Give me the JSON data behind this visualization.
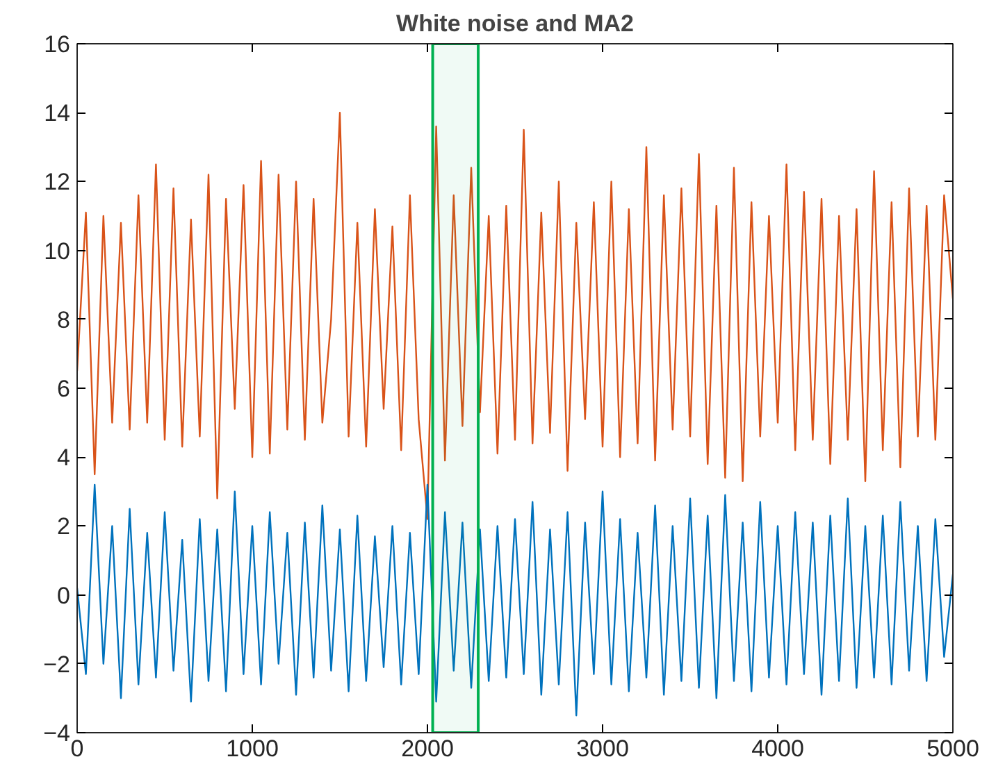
{
  "chart_data": {
    "type": "line",
    "title": "White noise and MA2",
    "x": [
      0,
      50,
      100,
      150,
      200,
      250,
      300,
      350,
      400,
      450,
      500,
      550,
      600,
      650,
      700,
      750,
      800,
      850,
      900,
      950,
      1000,
      1050,
      1100,
      1150,
      1200,
      1250,
      1300,
      1350,
      1400,
      1450,
      1500,
      1550,
      1600,
      1650,
      1700,
      1750,
      1800,
      1850,
      1900,
      1950,
      2000,
      2050,
      2100,
      2150,
      2200,
      2250,
      2300,
      2350,
      2400,
      2450,
      2500,
      2550,
      2600,
      2650,
      2700,
      2750,
      2800,
      2850,
      2900,
      2950,
      3000,
      3050,
      3100,
      3150,
      3200,
      3250,
      3300,
      3350,
      3400,
      3450,
      3500,
      3550,
      3600,
      3650,
      3700,
      3750,
      3800,
      3850,
      3900,
      3950,
      4000,
      4050,
      4100,
      4150,
      4200,
      4250,
      4300,
      4350,
      4400,
      4450,
      4500,
      4550,
      4600,
      4650,
      4700,
      4750,
      4800,
      4850,
      4900,
      4950,
      5000
    ],
    "series": [
      {
        "color": "#d95319",
        "values": [
          6.5,
          11.1,
          3.5,
          11.0,
          5.0,
          10.8,
          4.8,
          11.6,
          5.0,
          12.5,
          4.5,
          11.8,
          4.3,
          10.9,
          4.6,
          12.2,
          2.8,
          11.5,
          5.4,
          11.9,
          4.0,
          12.6,
          4.1,
          12.2,
          4.8,
          12.0,
          4.5,
          11.5,
          5.0,
          8.0,
          14.0,
          4.6,
          10.8,
          4.3,
          11.2,
          5.4,
          10.7,
          4.2,
          11.6,
          5.1,
          2.2,
          13.6,
          3.9,
          11.6,
          4.9,
          12.4,
          5.3,
          11.0,
          4.1,
          11.3,
          4.5,
          13.5,
          4.4,
          11.1,
          4.7,
          12.0,
          3.6,
          10.8,
          5.1,
          11.4,
          4.3,
          12.0,
          4.0,
          11.2,
          4.4,
          13.0,
          3.9,
          11.6,
          4.8,
          11.8,
          4.6,
          12.8,
          3.8,
          11.3,
          3.4,
          12.4,
          3.3,
          11.4,
          4.6,
          11.0,
          5.0,
          12.5,
          4.2,
          11.7,
          4.5,
          11.5,
          3.8,
          11.0,
          4.5,
          11.2,
          3.3,
          12.3,
          4.2,
          11.4,
          3.7,
          11.8,
          4.6,
          11.3,
          4.5,
          11.6,
          8.6
        ]
      },
      {
        "color": "#0072bd",
        "values": [
          0.2,
          -2.3,
          3.2,
          -2.0,
          2.0,
          -3.0,
          2.5,
          -2.6,
          1.8,
          -2.4,
          2.4,
          -2.2,
          1.6,
          -3.1,
          2.2,
          -2.5,
          1.9,
          -2.8,
          3.0,
          -2.3,
          2.0,
          -2.6,
          2.4,
          -2.0,
          1.8,
          -2.9,
          2.1,
          -2.4,
          2.6,
          -2.2,
          1.9,
          -2.8,
          2.3,
          -2.5,
          1.7,
          -2.1,
          2.0,
          -2.6,
          1.8,
          -2.3,
          3.2,
          -3.1,
          2.4,
          -2.2,
          2.1,
          -2.7,
          1.9,
          -2.5,
          2.0,
          -2.4,
          2.2,
          -2.3,
          2.7,
          -2.9,
          1.9,
          -2.6,
          2.4,
          -3.5,
          2.1,
          -2.3,
          3.0,
          -2.6,
          2.2,
          -2.8,
          1.8,
          -2.4,
          2.6,
          -2.9,
          2.0,
          -2.5,
          2.8,
          -2.7,
          2.3,
          -3.0,
          2.9,
          -2.5,
          2.1,
          -2.8,
          2.7,
          -2.4,
          2.0,
          -2.6,
          2.4,
          -2.3,
          2.1,
          -2.9,
          2.3,
          -2.5,
          2.8,
          -2.7,
          2.0,
          -2.4,
          2.3,
          -2.6,
          2.7,
          -2.2,
          2.0,
          -2.5,
          2.2,
          -1.8,
          0.6
        ]
      }
    ],
    "xlim": [
      0,
      5000
    ],
    "xticks": [
      0,
      1000,
      2000,
      3000,
      4000,
      5000
    ],
    "ylim": [
      -4,
      16
    ],
    "yticks": [
      -4,
      -2,
      0,
      2,
      4,
      6,
      8,
      10,
      12,
      14,
      16
    ],
    "bands": [
      {
        "axis": "x",
        "from": 2030,
        "to": 2290,
        "color": "#00b050"
      }
    ],
    "grid": false
  }
}
